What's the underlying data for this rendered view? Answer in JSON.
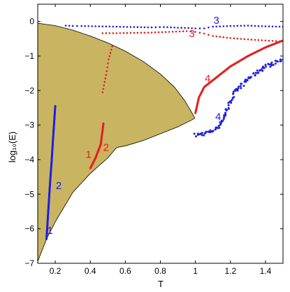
{
  "chart_data": {
    "type": "scatter",
    "title": "",
    "xlabel": "T",
    "ylabel": "log₁₀(E)",
    "xlim": [
      0.1,
      1.5
    ],
    "ylim": [
      -7,
      0.5
    ],
    "grid": false,
    "x_ticks": [
      0.2,
      0.4,
      0.6,
      0.8,
      1,
      1.2,
      1.4
    ],
    "x_tick_labels": [
      "0.2",
      "0.4",
      "0.6",
      "0.8",
      "1",
      "1.2",
      "1.4"
    ],
    "y_ticks": [
      0,
      -1,
      -2,
      -3,
      -4,
      -5,
      -6,
      -7
    ],
    "y_tick_labels": [
      "0",
      "−1",
      "−2",
      "−3",
      "−4",
      "−5",
      "−6",
      "−7"
    ],
    "colors": {
      "region_fill": "#c9b462",
      "blue": "#1f1fe0",
      "red": "#e41f1f",
      "outline": "#000000"
    },
    "region": {
      "upper": [
        [
          0.1,
          -0.05
        ],
        [
          0.2,
          -0.12
        ],
        [
          0.3,
          -0.25
        ],
        [
          0.4,
          -0.42
        ],
        [
          0.5,
          -0.62
        ],
        [
          0.6,
          -0.86
        ],
        [
          0.7,
          -1.15
        ],
        [
          0.8,
          -1.52
        ],
        [
          0.88,
          -1.9
        ],
        [
          0.94,
          -2.3
        ],
        [
          0.975,
          -2.6
        ],
        [
          0.995,
          -2.78
        ]
      ],
      "lower": [
        [
          0.995,
          -2.8
        ],
        [
          0.98,
          -2.85
        ],
        [
          0.9,
          -3.05
        ],
        [
          0.8,
          -3.25
        ],
        [
          0.7,
          -3.45
        ],
        [
          0.6,
          -3.6
        ],
        [
          0.55,
          -3.65
        ],
        [
          0.5,
          -3.95
        ],
        [
          0.4,
          -4.4
        ],
        [
          0.3,
          -4.95
        ],
        [
          0.2,
          -5.8
        ],
        [
          0.15,
          -6.3
        ],
        [
          0.1,
          -6.95
        ]
      ]
    },
    "series": [
      {
        "color": "blue",
        "style": "dense",
        "points": [
          [
            0.15,
            -6.3
          ],
          [
            0.16,
            -5.5
          ],
          [
            0.17,
            -4.7
          ],
          [
            0.18,
            -4.0
          ],
          [
            0.19,
            -3.2
          ],
          [
            0.2,
            -2.45
          ]
        ]
      },
      {
        "color": "red",
        "style": "dense",
        "points": [
          [
            0.4,
            -4.25
          ],
          [
            0.43,
            -3.95
          ],
          [
            0.46,
            -3.55
          ],
          [
            0.475,
            -2.95
          ]
        ]
      },
      {
        "color": "red",
        "style": "sparse",
        "points": [
          [
            0.47,
            -2.05
          ],
          [
            0.49,
            -1.55
          ],
          [
            0.505,
            -1.1
          ],
          [
            0.525,
            -0.72
          ]
        ]
      },
      {
        "color": "blue",
        "style": "sparse",
        "points": [
          [
            0.26,
            -0.12
          ],
          [
            0.3,
            -0.13
          ],
          [
            0.35,
            -0.13
          ],
          [
            0.45,
            -0.14
          ],
          [
            0.55,
            -0.15
          ],
          [
            0.65,
            -0.16
          ],
          [
            0.75,
            -0.17
          ],
          [
            0.82,
            -0.16
          ],
          [
            0.9,
            -0.18
          ],
          [
            1.0,
            -0.2
          ],
          [
            1.05,
            -0.2
          ],
          [
            1.1,
            -0.15
          ],
          [
            1.2,
            -0.13
          ],
          [
            1.3,
            -0.12
          ],
          [
            1.4,
            -0.14
          ],
          [
            1.5,
            -0.15
          ]
        ]
      },
      {
        "color": "red",
        "style": "sparse",
        "points": [
          [
            0.47,
            -0.34
          ],
          [
            0.55,
            -0.34
          ],
          [
            0.65,
            -0.33
          ],
          [
            0.75,
            -0.32
          ],
          [
            0.85,
            -0.3
          ],
          [
            0.95,
            -0.28
          ],
          [
            1.0,
            -0.3
          ],
          [
            1.05,
            -0.35
          ],
          [
            1.1,
            -0.42
          ],
          [
            1.2,
            -0.48
          ],
          [
            1.3,
            -0.52
          ],
          [
            1.4,
            -0.55
          ],
          [
            1.5,
            -0.58
          ]
        ]
      },
      {
        "color": "red",
        "style": "dense",
        "points": [
          [
            1.0,
            -2.65
          ],
          [
            1.02,
            -2.2
          ],
          [
            1.05,
            -1.9
          ],
          [
            1.1,
            -1.7
          ],
          [
            1.15,
            -1.5
          ],
          [
            1.2,
            -1.3
          ],
          [
            1.3,
            -1.0
          ],
          [
            1.4,
            -0.75
          ],
          [
            1.5,
            -0.55
          ]
        ]
      },
      {
        "color": "blue",
        "style": "noisy",
        "points": [
          [
            1.0,
            -3.3
          ],
          [
            1.04,
            -3.25
          ],
          [
            1.08,
            -3.2
          ],
          [
            1.12,
            -3.1
          ],
          [
            1.15,
            -2.9
          ],
          [
            1.18,
            -2.55
          ],
          [
            1.22,
            -2.1
          ],
          [
            1.3,
            -1.65
          ],
          [
            1.4,
            -1.3
          ],
          [
            1.5,
            -1.1
          ]
        ]
      }
    ],
    "annotations": [
      {
        "text": "1",
        "x": 0.17,
        "y": -6.15,
        "color": "blue"
      },
      {
        "text": "2",
        "x": 0.22,
        "y": -4.85,
        "color": "blue"
      },
      {
        "text": "1",
        "x": 0.39,
        "y": -3.95,
        "color": "red"
      },
      {
        "text": "2",
        "x": 0.49,
        "y": -3.75,
        "color": "red"
      },
      {
        "text": "3",
        "x": 1.12,
        "y": -0.07,
        "color": "blue"
      },
      {
        "text": "3",
        "x": 0.98,
        "y": -0.45,
        "color": "red"
      },
      {
        "text": "4",
        "x": 1.07,
        "y": -1.75,
        "color": "red"
      },
      {
        "text": "4",
        "x": 1.13,
        "y": -2.85,
        "color": "blue"
      }
    ]
  }
}
